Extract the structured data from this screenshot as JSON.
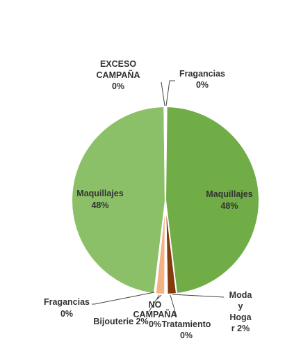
{
  "chart_data": {
    "type": "pie",
    "title": "",
    "slices": [
      {
        "label": "Fragancias",
        "percent": "0%",
        "value": 0.2,
        "color": "#70AD47"
      },
      {
        "label": "Maquillajes",
        "percent": "48%",
        "value": 48.0,
        "color": "#70AD47"
      },
      {
        "label": "Moda y Hogar",
        "percent": "2%",
        "value": 1.6,
        "color": "#843C0C"
      },
      {
        "label": "Tratamiento",
        "percent": "0%",
        "value": 0.2,
        "color": "#C55A11"
      },
      {
        "label": "NO CAMPAÑA",
        "percent": "0%",
        "value": 0.2,
        "color": "#F8CBAD"
      },
      {
        "label": "Bijouterie",
        "percent": "2%",
        "value": 1.6,
        "color": "#F4B183"
      },
      {
        "label": "Fragancias",
        "percent": "0%",
        "value": 0.2,
        "color": "#A9D18E"
      },
      {
        "label": "Maquillajes",
        "percent": "48%",
        "value": 48.0,
        "color": "#8CC068"
      },
      {
        "label": "EXCESO CAMPAÑA",
        "percent": "0%",
        "value": 0.2,
        "color": "#C5E0B4"
      }
    ],
    "labels": {
      "fragancias_top": [
        "Fragancias",
        "0%"
      ],
      "exceso": [
        "EXCESO",
        "CAMPAÑA",
        "0%"
      ],
      "maq_right": [
        "Maquillajes",
        "48%"
      ],
      "maq_left": [
        "Maquillajes",
        "48%"
      ],
      "moda": [
        "Moda",
        "y",
        "Hoga",
        "r 2%"
      ],
      "tratamiento": [
        "Tratamiento",
        "0%"
      ],
      "no_campana": [
        "NO",
        "CAMPAÑA",
        "0%"
      ],
      "bijouterie": [
        "Bijouterie 2%"
      ],
      "fragancias_bottom": [
        "Fragancias",
        "0%"
      ]
    }
  }
}
